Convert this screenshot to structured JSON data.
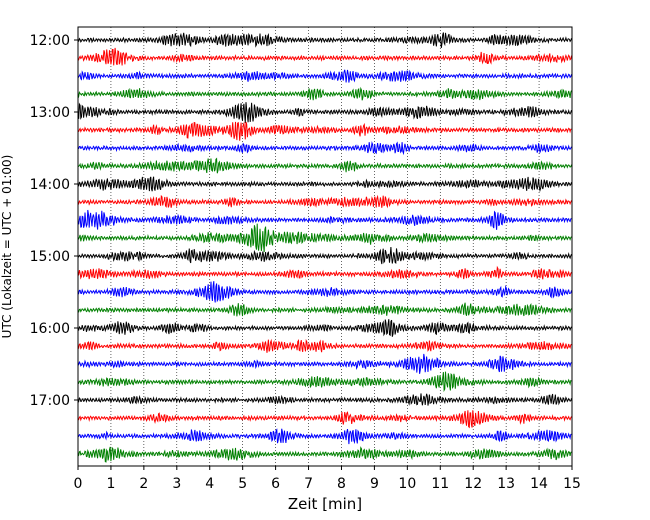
{
  "chart_data": {
    "type": "line",
    "title": "",
    "xlabel": "Zeit  [min]",
    "ylabel": "UTC (Lokalzeit = UTC + 01:00)",
    "xlim": [
      0,
      15
    ],
    "x_ticks": [
      "0",
      "1",
      "2",
      "3",
      "4",
      "5",
      "6",
      "7",
      "8",
      "9",
      "10",
      "11",
      "12",
      "13",
      "14",
      "15"
    ],
    "y_ticks": [
      "12:00",
      "13:00",
      "14:00",
      "15:00",
      "16:00",
      "17:00"
    ],
    "grid": "vertical dotted",
    "trace_interval_minutes": 15,
    "trace_colors": [
      "#000000",
      "#ff0000",
      "#0000ff",
      "#008000"
    ],
    "series": [
      {
        "start": "12:00",
        "color": "#000000"
      },
      {
        "start": "12:15",
        "color": "#ff0000"
      },
      {
        "start": "12:30",
        "color": "#0000ff"
      },
      {
        "start": "12:45",
        "color": "#008000"
      },
      {
        "start": "13:00",
        "color": "#000000"
      },
      {
        "start": "13:15",
        "color": "#ff0000"
      },
      {
        "start": "13:30",
        "color": "#0000ff"
      },
      {
        "start": "13:45",
        "color": "#008000"
      },
      {
        "start": "14:00",
        "color": "#000000"
      },
      {
        "start": "14:15",
        "color": "#ff0000"
      },
      {
        "start": "14:30",
        "color": "#0000ff"
      },
      {
        "start": "14:45",
        "color": "#008000"
      },
      {
        "start": "15:00",
        "color": "#000000"
      },
      {
        "start": "15:15",
        "color": "#ff0000"
      },
      {
        "start": "15:30",
        "color": "#0000ff"
      },
      {
        "start": "15:45",
        "color": "#008000"
      },
      {
        "start": "16:00",
        "color": "#000000"
      },
      {
        "start": "16:15",
        "color": "#ff0000"
      },
      {
        "start": "16:30",
        "color": "#0000ff"
      },
      {
        "start": "16:45",
        "color": "#008000"
      },
      {
        "start": "17:00",
        "color": "#000000"
      },
      {
        "start": "17:15",
        "color": "#ff0000"
      },
      {
        "start": "17:30",
        "color": "#0000ff"
      },
      {
        "start": "17:45",
        "color": "#008000"
      }
    ]
  }
}
